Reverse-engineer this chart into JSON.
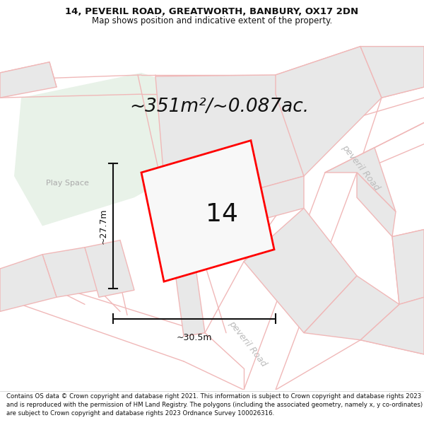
{
  "title_line1": "14, PEVERIL ROAD, GREATWORTH, BANBURY, OX17 2DN",
  "title_line2": "Map shows position and indicative extent of the property.",
  "area_text": "~351m²/~0.087ac.",
  "label_number": "14",
  "dim_width": "~30.5m",
  "dim_height": "~27.7m",
  "road_label_upper": "peveril Road",
  "road_label_lower": "peveril Road",
  "play_space_label": "Play Space",
  "footer_text": "Contains OS data © Crown copyright and database right 2021. This information is subject to Crown copyright and database rights 2023 and is reproduced with the permission of HM Land Registry. The polygons (including the associated geometry, namely x, y co-ordinates) are subject to Crown copyright and database rights 2023 Ordnance Survey 100026316.",
  "bg_color": "#ffffff",
  "map_bg": "#ffffff",
  "plot_fill": "#f5f5f5",
  "plot_edge": "#ff0000",
  "road_lines": "#f0b8b8",
  "green_fill": "#e8f2e8",
  "gray_fill": "#e8e8e8",
  "gray_edge": "#f0b8b8",
  "dim_line_color": "#111111",
  "text_color": "#111111",
  "road_text_color": "#bbbbbb",
  "title_fontsize": 9.5,
  "subtitle_fontsize": 8.5,
  "area_fontsize": 19,
  "number_fontsize": 26,
  "dim_fontsize": 9,
  "road_label_fontsize": 9,
  "play_fontsize": 8,
  "footer_fontsize": 6.2
}
